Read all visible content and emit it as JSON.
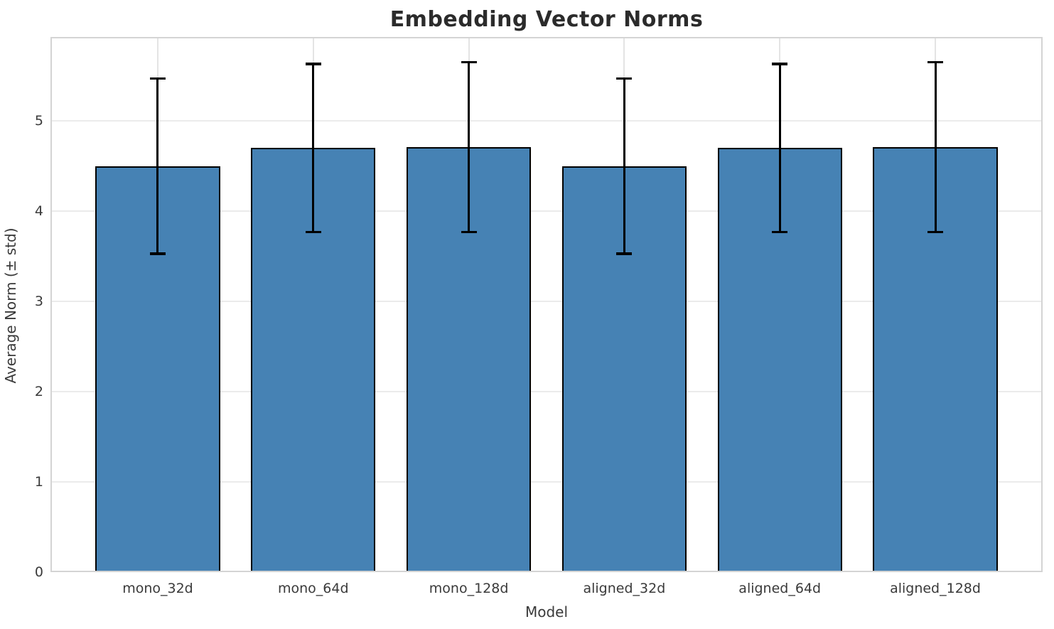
{
  "chart_data": {
    "type": "bar",
    "title": "Embedding Vector Norms",
    "xlabel": "Model",
    "ylabel": "Average Norm (± std)",
    "categories": [
      "mono_32d",
      "mono_64d",
      "mono_128d",
      "aligned_32d",
      "aligned_64d",
      "aligned_128d"
    ],
    "values": [
      4.5,
      4.7,
      4.71,
      4.5,
      4.7,
      4.71
    ],
    "errors": [
      0.97,
      0.93,
      0.94,
      0.97,
      0.93,
      0.94
    ],
    "yticks": [
      0,
      1,
      2,
      3,
      4,
      5
    ],
    "ylim": [
      0,
      5.93
    ],
    "grid": "both",
    "legend": "none",
    "bar_color": "#4682B4",
    "bar_edge_color": "#000000",
    "errorbar_color": "#000000",
    "grid_color": "#ebebeb",
    "spine_color": "#d4d4d4",
    "text_color": "#3a3a3a",
    "title_color": "#2b2b2b"
  }
}
